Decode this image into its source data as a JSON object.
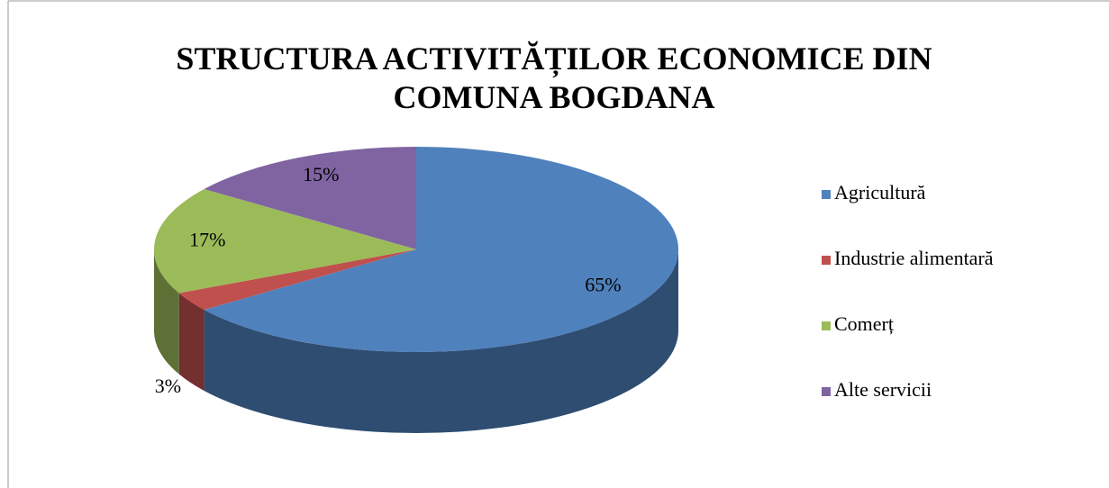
{
  "chart_data": {
    "type": "pie",
    "title": "STRUCTURA ACTIVITĂȚILOR ECONOMICE DIN COMUNA BOGDANA",
    "categories": [
      "Agricultură",
      "Industrie alimentară",
      "Comerț",
      "Alte servicii"
    ],
    "values": [
      65,
      3,
      17,
      15
    ],
    "value_labels": [
      "65%",
      "3%",
      "17%",
      "15%"
    ],
    "colors": [
      "#4f81bd",
      "#c0504d",
      "#9bbb59",
      "#8064a2"
    ],
    "legend": "right"
  }
}
